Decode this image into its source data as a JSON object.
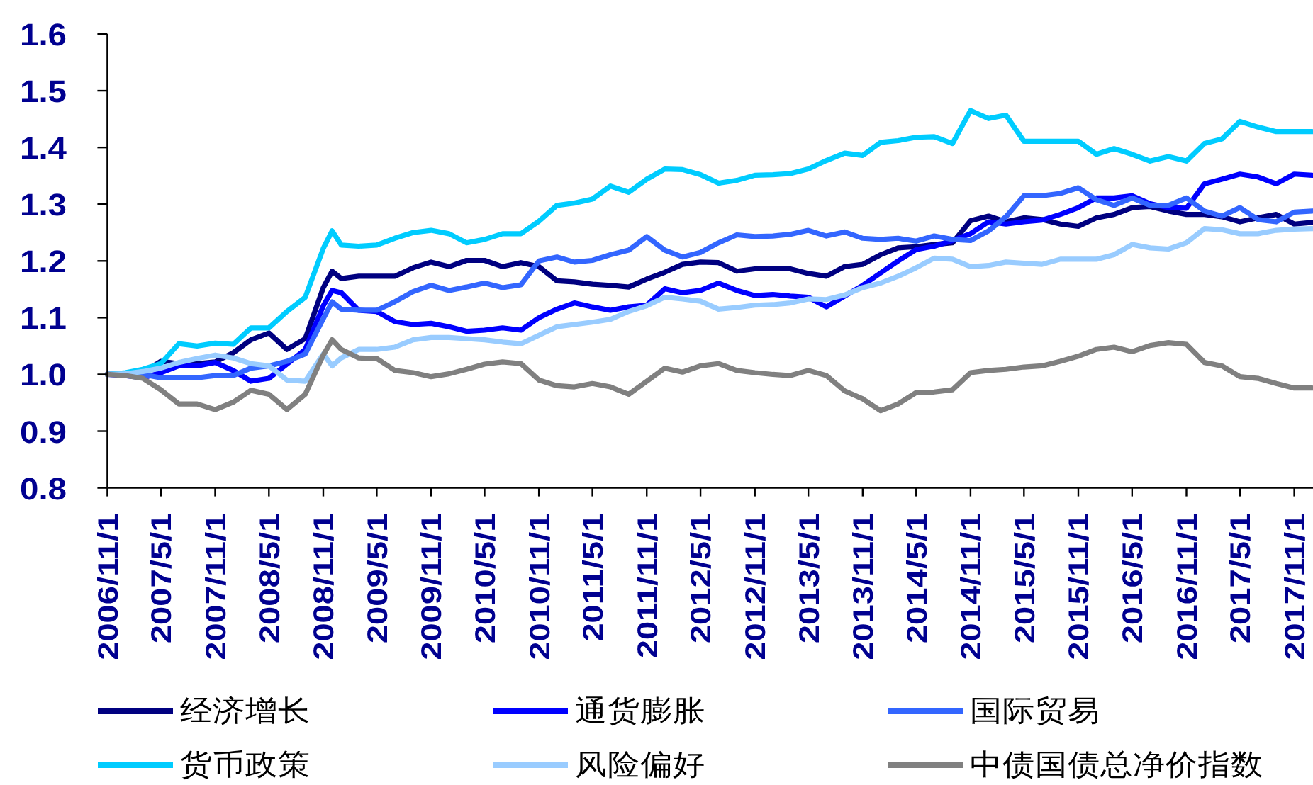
{
  "chart_data": {
    "type": "line",
    "x": [
      "2006-11",
      "2007-01",
      "2007-03",
      "2007-05",
      "2007-07",
      "2007-09",
      "2007-11",
      "2008-01",
      "2008-03",
      "2008-05",
      "2008-07",
      "2008-09",
      "2008-11",
      "2008-12",
      "2009-01",
      "2009-03",
      "2009-05",
      "2009-07",
      "2009-09",
      "2009-11",
      "2010-01",
      "2010-03",
      "2010-05",
      "2010-07",
      "2010-09",
      "2010-11",
      "2011-01",
      "2011-03",
      "2011-05",
      "2011-07",
      "2011-09",
      "2011-11",
      "2012-01",
      "2012-03",
      "2012-05",
      "2012-07",
      "2012-09",
      "2012-11",
      "2013-01",
      "2013-03",
      "2013-05",
      "2013-07",
      "2013-09",
      "2013-11",
      "2014-01",
      "2014-03",
      "2014-05",
      "2014-07",
      "2014-09",
      "2014-11",
      "2015-01",
      "2015-03",
      "2015-05",
      "2015-07",
      "2015-09",
      "2015-11",
      "2016-01",
      "2016-03",
      "2016-05",
      "2016-07",
      "2016-09",
      "2016-11",
      "2017-01",
      "2017-03",
      "2017-05",
      "2017-07",
      "2017-09",
      "2017-11",
      "2018-01"
    ],
    "series": [
      {
        "name": "经济增长",
        "color": "#000080",
        "values": [
          1.0,
          1.001,
          1.003,
          1.023,
          1.019,
          1.019,
          1.022,
          1.038,
          1.061,
          1.073,
          1.044,
          1.063,
          1.153,
          1.182,
          1.169,
          1.173,
          1.173,
          1.173,
          1.188,
          1.198,
          1.19,
          1.201,
          1.201,
          1.19,
          1.197,
          1.19,
          1.165,
          1.163,
          1.159,
          1.157,
          1.154,
          1.168,
          1.18,
          1.194,
          1.198,
          1.197,
          1.182,
          1.186,
          1.186,
          1.186,
          1.178,
          1.173,
          1.19,
          1.194,
          1.211,
          1.223,
          1.225,
          1.229,
          1.232,
          1.271,
          1.279,
          1.269,
          1.276,
          1.273,
          1.265,
          1.261,
          1.276,
          1.282,
          1.294,
          1.296,
          1.288,
          1.282,
          1.282,
          1.278,
          1.269,
          1.276,
          1.282,
          1.265,
          1.268
        ]
      },
      {
        "name": "通货膨胀",
        "color": "#0000ff",
        "values": [
          1.0,
          0.998,
          0.994,
          1.003,
          1.015,
          1.015,
          1.021,
          1.007,
          0.988,
          0.993,
          1.018,
          1.044,
          1.121,
          1.148,
          1.144,
          1.113,
          1.111,
          1.093,
          1.088,
          1.09,
          1.084,
          1.076,
          1.078,
          1.082,
          1.078,
          1.1,
          1.115,
          1.126,
          1.119,
          1.113,
          1.119,
          1.122,
          1.151,
          1.144,
          1.148,
          1.161,
          1.148,
          1.139,
          1.141,
          1.138,
          1.136,
          1.119,
          1.138,
          1.157,
          1.179,
          1.2,
          1.22,
          1.226,
          1.236,
          1.248,
          1.269,
          1.265,
          1.269,
          1.272,
          1.282,
          1.294,
          1.311,
          1.311,
          1.315,
          1.301,
          1.294,
          1.293,
          1.336,
          1.344,
          1.353,
          1.348,
          1.336,
          1.353,
          1.351
        ]
      },
      {
        "name": "国际贸易",
        "color": "#3366ff",
        "values": [
          1.0,
          1.0,
          1.0,
          0.994,
          0.994,
          0.994,
          0.998,
          0.998,
          1.011,
          1.015,
          1.023,
          1.036,
          1.098,
          1.128,
          1.115,
          1.113,
          1.113,
          1.128,
          1.146,
          1.157,
          1.148,
          1.154,
          1.161,
          1.153,
          1.158,
          1.2,
          1.207,
          1.198,
          1.201,
          1.211,
          1.219,
          1.243,
          1.219,
          1.207,
          1.215,
          1.232,
          1.246,
          1.243,
          1.244,
          1.247,
          1.254,
          1.244,
          1.251,
          1.24,
          1.238,
          1.24,
          1.235,
          1.244,
          1.238,
          1.236,
          1.253,
          1.278,
          1.315,
          1.315,
          1.319,
          1.329,
          1.308,
          1.298,
          1.311,
          1.298,
          1.298,
          1.311,
          1.288,
          1.279,
          1.294,
          1.273,
          1.269,
          1.286,
          1.288
        ]
      },
      {
        "name": "货币政策",
        "color": "#00ccff",
        "values": [
          1.0,
          1.003,
          1.009,
          1.019,
          1.054,
          1.05,
          1.055,
          1.053,
          1.082,
          1.082,
          1.111,
          1.136,
          1.222,
          1.253,
          1.228,
          1.226,
          1.228,
          1.24,
          1.25,
          1.254,
          1.248,
          1.232,
          1.238,
          1.248,
          1.248,
          1.27,
          1.298,
          1.302,
          1.309,
          1.332,
          1.321,
          1.344,
          1.362,
          1.361,
          1.352,
          1.337,
          1.342,
          1.351,
          1.352,
          1.354,
          1.362,
          1.377,
          1.39,
          1.386,
          1.409,
          1.412,
          1.418,
          1.419,
          1.407,
          1.465,
          1.451,
          1.457,
          1.411,
          1.411,
          1.411,
          1.411,
          1.388,
          1.398,
          1.388,
          1.376,
          1.384,
          1.376,
          1.407,
          1.415,
          1.446,
          1.436,
          1.428,
          1.428,
          1.428
        ]
      },
      {
        "name": "风险偏好",
        "color": "#99ccff",
        "values": [
          1.0,
          1.001,
          1.005,
          1.011,
          1.021,
          1.028,
          1.034,
          1.029,
          1.019,
          1.015,
          0.99,
          0.988,
          1.036,
          1.015,
          1.029,
          1.044,
          1.044,
          1.048,
          1.061,
          1.065,
          1.065,
          1.063,
          1.061,
          1.057,
          1.054,
          1.069,
          1.084,
          1.088,
          1.092,
          1.097,
          1.111,
          1.121,
          1.136,
          1.133,
          1.129,
          1.115,
          1.118,
          1.122,
          1.123,
          1.126,
          1.133,
          1.132,
          1.14,
          1.153,
          1.161,
          1.173,
          1.188,
          1.205,
          1.203,
          1.19,
          1.192,
          1.198,
          1.196,
          1.194,
          1.203,
          1.203,
          1.203,
          1.211,
          1.229,
          1.223,
          1.221,
          1.232,
          1.257,
          1.255,
          1.248,
          1.248,
          1.254,
          1.256,
          1.257
        ]
      },
      {
        "name": "中债国债总净价指数",
        "color": "#808080",
        "values": [
          1.0,
          0.998,
          0.993,
          0.973,
          0.948,
          0.948,
          0.938,
          0.951,
          0.972,
          0.965,
          0.938,
          0.965,
          1.034,
          1.061,
          1.044,
          1.029,
          1.028,
          1.007,
          1.003,
          0.996,
          1.001,
          1.009,
          1.018,
          1.022,
          1.019,
          0.99,
          0.98,
          0.978,
          0.984,
          0.978,
          0.965,
          0.988,
          1.011,
          1.004,
          1.015,
          1.019,
          1.007,
          1.003,
          1.0,
          0.998,
          1.007,
          0.998,
          0.971,
          0.957,
          0.936,
          0.948,
          0.968,
          0.969,
          0.973,
          1.003,
          1.007,
          1.009,
          1.013,
          1.015,
          1.023,
          1.032,
          1.044,
          1.048,
          1.04,
          1.051,
          1.056,
          1.053,
          1.021,
          1.015,
          0.996,
          0.993,
          0.984,
          0.976,
          0.976
        ]
      }
    ],
    "xlim": [
      "2006-11-01",
      "2018-01-01"
    ],
    "xticks": [
      {
        "value": "2006-11-01",
        "label": "2006/11/1"
      },
      {
        "value": "2007-05-01",
        "label": "2007/5/1"
      },
      {
        "value": "2007-11-01",
        "label": "2007/11/1"
      },
      {
        "value": "2008-05-01",
        "label": "2008/5/1"
      },
      {
        "value": "2008-11-01",
        "label": "2008/11/1"
      },
      {
        "value": "2009-05-01",
        "label": "2009/5/1"
      },
      {
        "value": "2009-11-01",
        "label": "2009/11/1"
      },
      {
        "value": "2010-05-01",
        "label": "2010/5/1"
      },
      {
        "value": "2010-11-01",
        "label": "2010/11/1"
      },
      {
        "value": "2011-05-01",
        "label": "2011/5/1"
      },
      {
        "value": "2011-11-01",
        "label": "2011/11/1"
      },
      {
        "value": "2012-05-01",
        "label": "2012/5/1"
      },
      {
        "value": "2012-11-01",
        "label": "2012/11/1"
      },
      {
        "value": "2013-05-01",
        "label": "2013/5/1"
      },
      {
        "value": "2013-11-01",
        "label": "2013/11/1"
      },
      {
        "value": "2014-05-01",
        "label": "2014/5/1"
      },
      {
        "value": "2014-11-01",
        "label": "2014/11/1"
      },
      {
        "value": "2015-05-01",
        "label": "2015/5/1"
      },
      {
        "value": "2015-11-01",
        "label": "2015/11/1"
      },
      {
        "value": "2016-05-01",
        "label": "2016/5/1"
      },
      {
        "value": "2016-11-01",
        "label": "2016/11/1"
      },
      {
        "value": "2017-05-01",
        "label": "2017/5/1"
      },
      {
        "value": "2017-11-01",
        "label": "2017/11/1"
      }
    ],
    "ylim": [
      0.8,
      1.6
    ],
    "yticks": [
      0.8,
      0.9,
      {
        "value": 1,
        "label": "1.0"
      },
      1.1,
      1.2,
      1.3,
      1.4,
      1.5,
      1.6
    ],
    "legend": "bottom"
  }
}
